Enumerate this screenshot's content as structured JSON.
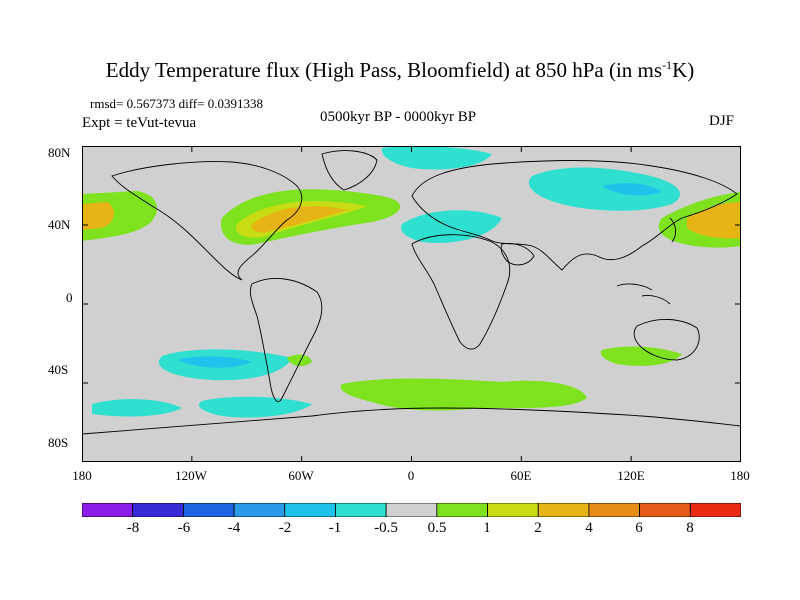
{
  "title_main": "Eddy Temperature flux (High Pass, Bloomfield) at 850 hPa (in ms",
  "title_sup": "-1",
  "title_end": "K)",
  "stats_line": "rmsd= 0.567373  diff= 0.0391338",
  "expt": "Expt = teVut-tevua",
  "period": "0500kyr BP - 0000kyr BP",
  "season": "DJF",
  "y_ticks": [
    "80N",
    "40N",
    "0",
    "40S",
    "80S"
  ],
  "x_ticks": [
    "180",
    "120W",
    "60W",
    "0",
    "60E",
    "120E",
    "180"
  ],
  "colorbar": {
    "labels": [
      "-8",
      "-6",
      "-4",
      "-2",
      "-1",
      "-0.5",
      "0.5",
      "1",
      "2",
      "4",
      "6",
      "8"
    ],
    "colors": [
      "#8a1ee6",
      "#3a2ad8",
      "#1c64e0",
      "#2a9ae8",
      "#1ec2ea",
      "#2fe0d0",
      "#d0d0d0",
      "#7ee21e",
      "#c8dc14",
      "#e6b414",
      "#e68c18",
      "#e65c18",
      "#e82c14"
    ]
  },
  "palette": {
    "land_bg": "#d0d0d0",
    "cyan": "#2fe0d0",
    "lightblue": "#1ec2ea",
    "green": "#7ee21e",
    "yellow": "#c8dc14",
    "orange": "#e6b414"
  }
}
